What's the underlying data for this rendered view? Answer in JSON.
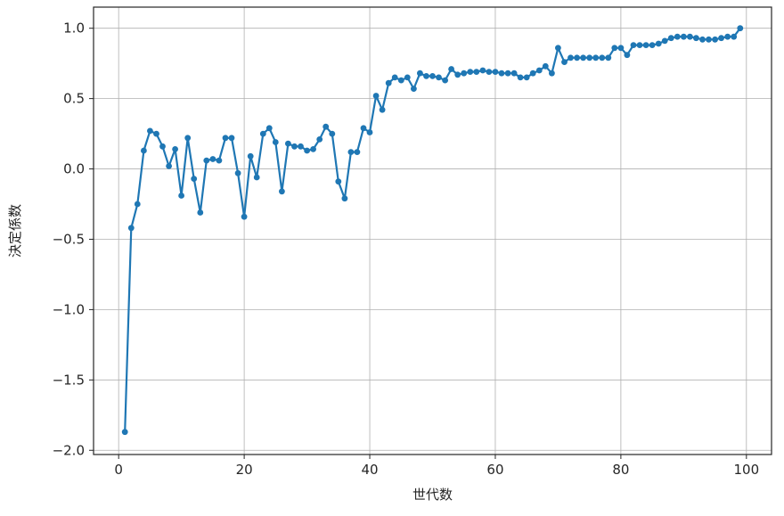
{
  "chart_data": {
    "type": "line",
    "title": "",
    "xlabel": "世代数",
    "ylabel": "決定係数",
    "xlim": [
      -4,
      104
    ],
    "ylim": [
      -2.03,
      1.15
    ],
    "xticks": [
      0,
      20,
      40,
      60,
      80,
      100
    ],
    "yticks": [
      -2.0,
      -1.5,
      -1.0,
      -0.5,
      0.0,
      0.5,
      1.0
    ],
    "xtick_labels": [
      "0",
      "20",
      "40",
      "60",
      "80",
      "100"
    ],
    "ytick_labels": [
      "−2.0",
      "−1.5",
      "−1.0",
      "−0.5",
      "0.0",
      "0.5",
      "1.0"
    ],
    "grid": true,
    "legend": "none",
    "series": [
      {
        "color": "#1f77b4",
        "marker": "circle",
        "x": [
          1,
          2,
          3,
          4,
          5,
          6,
          7,
          8,
          9,
          10,
          11,
          12,
          13,
          14,
          15,
          16,
          17,
          18,
          19,
          20,
          21,
          22,
          23,
          24,
          25,
          26,
          27,
          28,
          29,
          30,
          31,
          32,
          33,
          34,
          35,
          36,
          37,
          38,
          39,
          40,
          41,
          42,
          43,
          44,
          45,
          46,
          47,
          48,
          49,
          50,
          51,
          52,
          53,
          54,
          55,
          56,
          57,
          58,
          59,
          60,
          61,
          62,
          63,
          64,
          65,
          66,
          67,
          68,
          69,
          70,
          71,
          72,
          73,
          74,
          75,
          76,
          77,
          78,
          79,
          80,
          81,
          82,
          83,
          84,
          85,
          86,
          87,
          88,
          89,
          90,
          91,
          92,
          93,
          94,
          95,
          96,
          97,
          98,
          99
        ],
        "y": [
          -1.87,
          -0.42,
          -0.25,
          0.13,
          0.27,
          0.25,
          0.16,
          0.02,
          0.14,
          -0.19,
          0.22,
          -0.07,
          -0.31,
          0.06,
          0.07,
          0.06,
          0.22,
          0.22,
          -0.03,
          -0.34,
          0.09,
          -0.06,
          0.25,
          0.29,
          0.19,
          -0.16,
          0.18,
          0.16,
          0.16,
          0.13,
          0.14,
          0.21,
          0.3,
          0.25,
          -0.09,
          -0.21,
          0.12,
          0.12,
          0.29,
          0.26,
          0.52,
          0.42,
          0.61,
          0.65,
          0.63,
          0.65,
          0.57,
          0.68,
          0.66,
          0.66,
          0.65,
          0.63,
          0.71,
          0.67,
          0.68,
          0.69,
          0.69,
          0.7,
          0.69,
          0.69,
          0.68,
          0.68,
          0.68,
          0.65,
          0.65,
          0.68,
          0.7,
          0.73,
          0.68,
          0.86,
          0.76,
          0.79,
          0.79,
          0.79,
          0.79,
          0.79,
          0.79,
          0.79,
          0.86,
          0.86,
          0.81,
          0.88,
          0.88,
          0.88,
          0.88,
          0.89,
          0.91,
          0.93,
          0.94,
          0.94,
          0.94,
          0.93,
          0.92,
          0.92,
          0.92,
          0.93,
          0.94,
          0.94,
          1.0
        ]
      }
    ]
  }
}
